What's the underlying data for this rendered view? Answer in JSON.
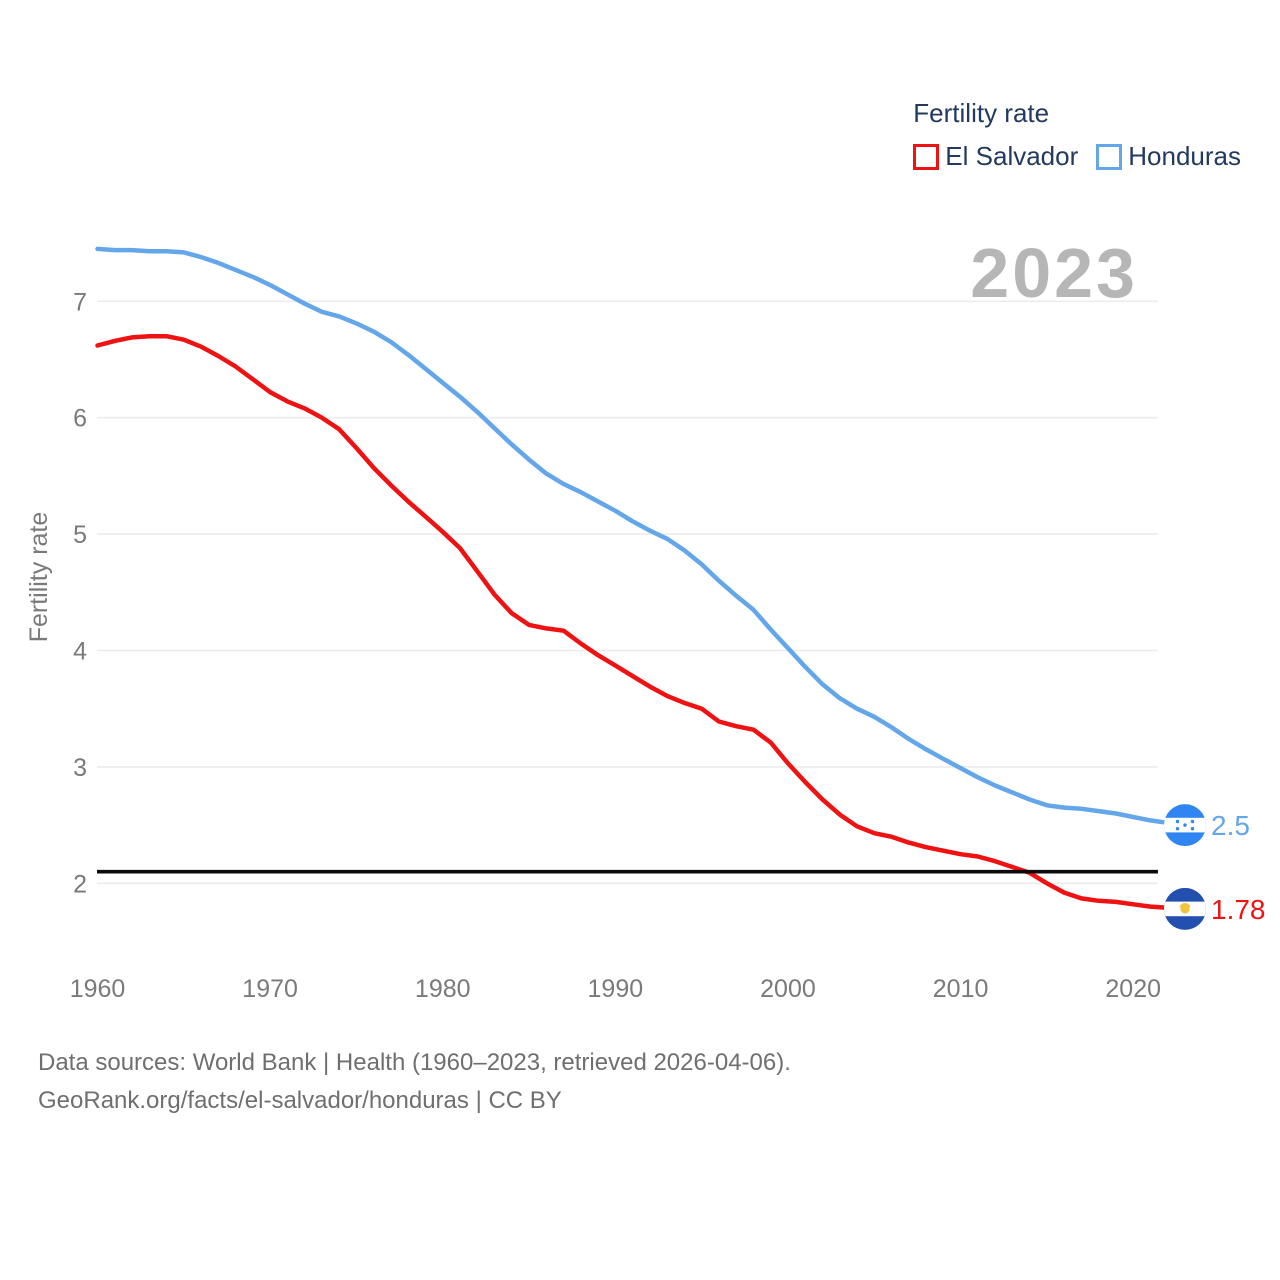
{
  "legend": {
    "title": "Fertility rate"
  },
  "watermark": "2023",
  "footer": {
    "line1": "Data sources: World Bank | Health (1960–2023, retrieved 2026-04-06).",
    "line2": "GeoRank.org/facts/el-salvador/honduras | CC BY"
  },
  "icons": {
    "el_salvador_flag": {
      "blue": "#234fae",
      "white": "#ffffff",
      "gold": "#f2c43d"
    },
    "honduras_flag": {
      "blue": "#2f86f2",
      "white": "#ffffff",
      "star": "#2f86f2"
    }
  },
  "colors": {
    "el_salvador_line": "#ee1212",
    "honduras_line": "#64a6ea",
    "replacement_line": "#0b0b0b",
    "gridline": "#ececec",
    "axis_text": "#7a7a7a",
    "legend_text": "#233a5e",
    "watermark_text": "#b6b6b6",
    "footer_text": "#6f6f6f"
  },
  "chart_data": {
    "type": "line",
    "title": "Fertility rate",
    "xlabel": "",
    "ylabel": "Fertility rate",
    "x_start": 1960,
    "x_end": 2023,
    "xticks": [
      1960,
      1970,
      1980,
      1990,
      2000,
      2010,
      2020
    ],
    "yticks": [
      2,
      3,
      4,
      5,
      6,
      7
    ],
    "ylim": [
      1.5,
      7.6
    ],
    "grid": true,
    "legend_position": "top-right",
    "replacement_line": 2.1,
    "series": [
      {
        "name": "El Salvador",
        "color": "#ee1212",
        "end_label": "1.78",
        "end_value": 1.78,
        "values": [
          6.62,
          6.66,
          6.69,
          6.7,
          6.7,
          6.67,
          6.61,
          6.53,
          6.44,
          6.33,
          6.22,
          6.14,
          6.08,
          6.0,
          5.9,
          5.74,
          5.57,
          5.42,
          5.28,
          5.15,
          5.02,
          4.88,
          4.68,
          4.48,
          4.32,
          4.22,
          4.19,
          4.17,
          4.06,
          3.96,
          3.87,
          3.78,
          3.69,
          3.61,
          3.55,
          3.5,
          3.39,
          3.35,
          3.32,
          3.21,
          3.03,
          2.87,
          2.72,
          2.59,
          2.49,
          2.43,
          2.4,
          2.35,
          2.31,
          2.28,
          2.25,
          2.23,
          2.19,
          2.14,
          2.09,
          2.0,
          1.92,
          1.87,
          1.85,
          1.84,
          1.82,
          1.8,
          1.79,
          1.78
        ]
      },
      {
        "name": "Honduras",
        "color": "#64a6ea",
        "end_label": "2.5",
        "end_value": 2.5,
        "values": [
          7.45,
          7.44,
          7.44,
          7.43,
          7.43,
          7.42,
          7.38,
          7.33,
          7.27,
          7.21,
          7.14,
          7.06,
          6.98,
          6.91,
          6.87,
          6.81,
          6.74,
          6.65,
          6.54,
          6.42,
          6.3,
          6.18,
          6.05,
          5.91,
          5.77,
          5.64,
          5.52,
          5.43,
          5.36,
          5.28,
          5.2,
          5.11,
          5.03,
          4.96,
          4.86,
          4.74,
          4.6,
          4.47,
          4.35,
          4.18,
          4.02,
          3.86,
          3.71,
          3.59,
          3.5,
          3.43,
          3.34,
          3.24,
          3.15,
          3.07,
          2.99,
          2.91,
          2.84,
          2.78,
          2.72,
          2.67,
          2.65,
          2.64,
          2.62,
          2.6,
          2.57,
          2.54,
          2.52,
          2.5
        ]
      }
    ]
  }
}
